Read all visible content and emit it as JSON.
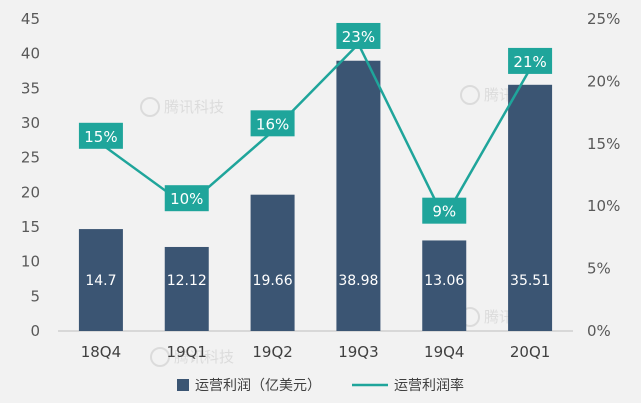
{
  "chart_data": {
    "type": "bar+line",
    "categories": [
      "18Q4",
      "19Q1",
      "19Q2",
      "19Q3",
      "19Q4",
      "20Q1"
    ],
    "series": [
      {
        "name": "运营利润（亿美元）",
        "type": "bar",
        "axis": "left",
        "values": [
          14.7,
          12.12,
          19.66,
          38.98,
          13.06,
          35.51
        ],
        "value_labels": [
          "14.7",
          "12.12",
          "19.66",
          "38.98",
          "13.06",
          "35.51"
        ]
      },
      {
        "name": "运营利润率",
        "type": "line",
        "axis": "right",
        "values": [
          15,
          10,
          16,
          23,
          9,
          21
        ],
        "value_labels": [
          "15%",
          "10%",
          "16%",
          "23%",
          "9%",
          "21%"
        ]
      }
    ],
    "left_axis": {
      "min": 0,
      "max": 45,
      "step": 5,
      "tick_labels": [
        "0",
        "5",
        "10",
        "15",
        "20",
        "25",
        "30",
        "35",
        "40",
        "45"
      ]
    },
    "right_axis": {
      "min": 0,
      "max": 25,
      "step": 5,
      "tick_labels": [
        "0%",
        "5%",
        "10%",
        "15%",
        "20%",
        "25%"
      ]
    },
    "grid": false,
    "legend": "bottom-center",
    "colors": {
      "bar": "#3b5573",
      "line": "#1fa59b",
      "background": "#f2f2f2"
    },
    "watermark": "腾讯科技"
  }
}
